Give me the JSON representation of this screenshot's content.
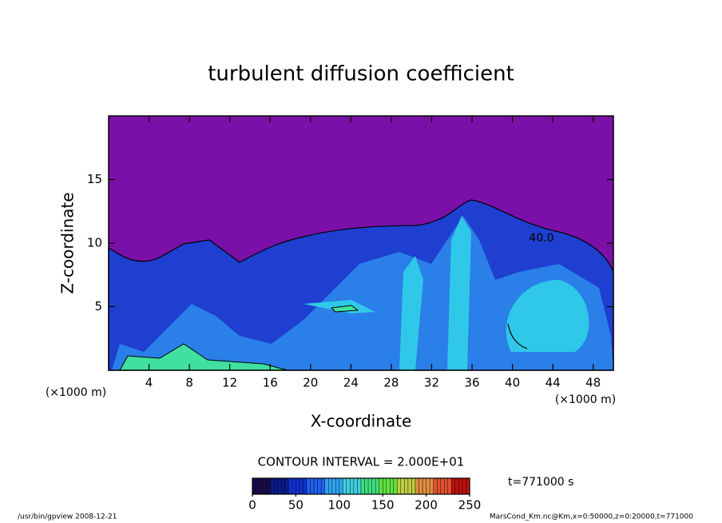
{
  "chart_data": {
    "type": "contour",
    "title": "turbulent diffusion coefficient",
    "x_label": "X-coordinate",
    "y_label": "Z-coordinate",
    "x_unit_label": "(×1000 m)",
    "xlim": [
      0,
      50
    ],
    "ylim": [
      0,
      20
    ],
    "xticks": [
      4,
      8,
      12,
      16,
      20,
      24,
      28,
      32,
      36,
      40,
      44,
      48
    ],
    "yticks": [
      5,
      10,
      15
    ],
    "background_color": "#7a10a8",
    "contour_label": "40.0",
    "contour_interval_text": "CONTOUR INTERVAL = 2.000E+01",
    "time_text": "t=771000 s",
    "footer_left": "/usr/bin/gpview   2008-12-21",
    "footer_right": "MarsCond_Km.nc@Km,x=0:50000,z=0:20000,t=771000",
    "colorbar": {
      "lim": [
        0,
        250
      ],
      "ticks": [
        0,
        50,
        100,
        150,
        200,
        250
      ],
      "colors": [
        "#1a0a4a",
        "#0a1a8a",
        "#1030d0",
        "#2060f0",
        "#30a0f0",
        "#40d0e0",
        "#40e080",
        "#60e040",
        "#c0d040",
        "#e09040",
        "#e05030",
        "#c01010"
      ]
    }
  }
}
